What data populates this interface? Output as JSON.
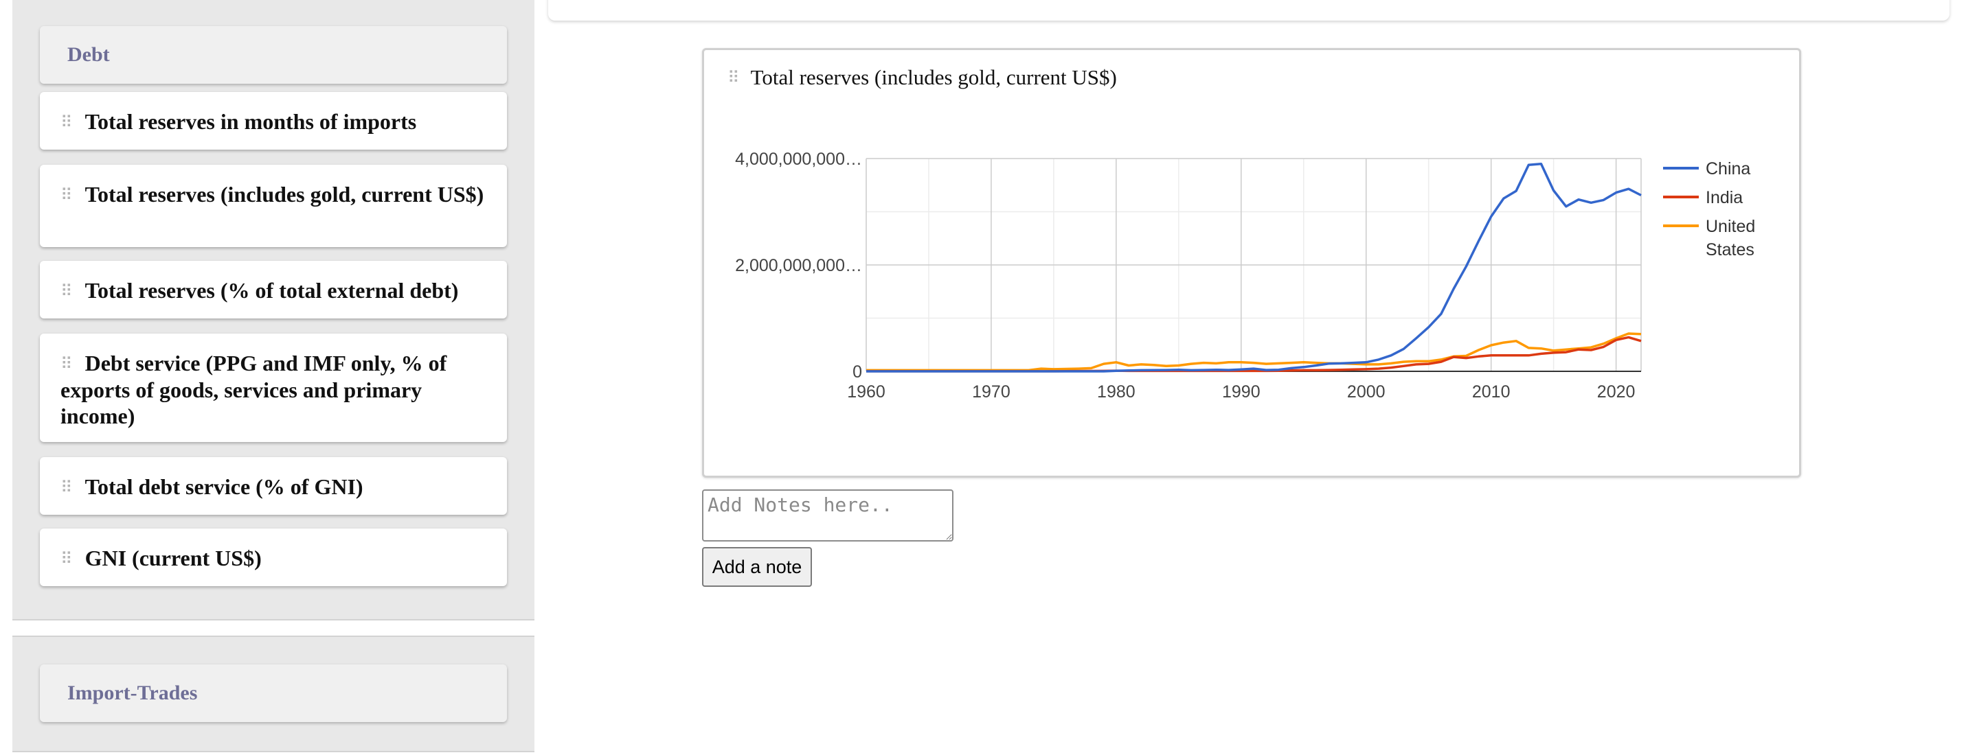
{
  "sidebar": {
    "debt_section": {
      "title": "Debt",
      "items": [
        {
          "label": "Total reserves in months of imports"
        },
        {
          "label": "Total reserves (includes gold, current US$)"
        },
        {
          "label": "Total reserves (% of total external debt)"
        },
        {
          "label": "Debt service (PPG and IMF only, % of exports of goods, services and primary income)"
        },
        {
          "label": "Total debt service (% of GNI)"
        },
        {
          "label": "GNI (current US$)"
        }
      ]
    },
    "import_section": {
      "title": "Import-Trades"
    }
  },
  "drag_handle_glyph": "⠿",
  "chart_card": {
    "title": "Total reserves (includes gold, current US$)"
  },
  "chart_data": {
    "type": "line",
    "title": "Total reserves (includes gold, current US$)",
    "xlabel": "",
    "ylabel": "",
    "xlim": [
      1960,
      2022
    ],
    "ylim": [
      0,
      4000000000000
    ],
    "x_ticks": [
      "1960",
      "1970",
      "1980",
      "1990",
      "2000",
      "2010",
      "2020"
    ],
    "y_tick_labels": [
      "0",
      "2,000,000,000…",
      "4,000,000,000…"
    ],
    "legend_position": "right",
    "grid": true,
    "x": [
      1960,
      1961,
      1962,
      1963,
      1964,
      1965,
      1966,
      1967,
      1968,
      1969,
      1970,
      1971,
      1972,
      1973,
      1974,
      1975,
      1976,
      1977,
      1978,
      1979,
      1980,
      1981,
      1982,
      1983,
      1984,
      1985,
      1986,
      1987,
      1988,
      1989,
      1990,
      1991,
      1992,
      1993,
      1994,
      1995,
      1996,
      1997,
      1998,
      1999,
      2000,
      2001,
      2002,
      2003,
      2004,
      2005,
      2006,
      2007,
      2008,
      2009,
      2010,
      2011,
      2012,
      2013,
      2014,
      2015,
      2016,
      2017,
      2018,
      2019,
      2020,
      2021,
      2022
    ],
    "series": [
      {
        "name": "China",
        "color": "#3366cc",
        "values_billions": [
          0,
          0,
          0,
          0,
          0,
          0,
          0,
          0,
          0,
          0,
          0,
          0,
          0,
          0,
          0,
          0,
          0,
          0,
          0,
          0,
          10,
          15,
          20,
          22,
          25,
          30,
          20,
          25,
          30,
          25,
          35,
          50,
          25,
          30,
          60,
          80,
          110,
          145,
          150,
          160,
          170,
          220,
          300,
          420,
          620,
          830,
          1080,
          1550,
          1970,
          2450,
          2910,
          3250,
          3390,
          3880,
          3900,
          3400,
          3100,
          3230,
          3170,
          3220,
          3360,
          3430,
          3310
        ]
      },
      {
        "name": "India",
        "color": "#dc3912",
        "values_billions": [
          1,
          1,
          1,
          1,
          1,
          1,
          1,
          1,
          1,
          1,
          1,
          1,
          1,
          1,
          1,
          1,
          3,
          5,
          7,
          8,
          12,
          8,
          8,
          8,
          8,
          8,
          8,
          8,
          8,
          8,
          8,
          8,
          8,
          10,
          15,
          20,
          20,
          25,
          30,
          35,
          40,
          50,
          70,
          100,
          130,
          140,
          180,
          270,
          250,
          280,
          300,
          300,
          300,
          300,
          330,
          350,
          360,
          410,
          400,
          460,
          590,
          640,
          570
        ]
      },
      {
        "name": "United States",
        "color": "#ff9900",
        "values_billions": [
          20,
          20,
          20,
          20,
          20,
          20,
          20,
          20,
          20,
          20,
          20,
          20,
          20,
          20,
          50,
          40,
          45,
          50,
          60,
          140,
          170,
          110,
          130,
          120,
          100,
          110,
          140,
          160,
          150,
          170,
          170,
          160,
          140,
          150,
          160,
          170,
          160,
          150,
          150,
          140,
          130,
          130,
          150,
          180,
          190,
          190,
          220,
          280,
          290,
          400,
          490,
          540,
          570,
          440,
          430,
          390,
          410,
          430,
          450,
          520,
          620,
          710,
          700
        ]
      }
    ]
  },
  "notes": {
    "placeholder": "Add Notes here..",
    "value": ""
  },
  "add_note_button": {
    "label": "Add a note"
  }
}
